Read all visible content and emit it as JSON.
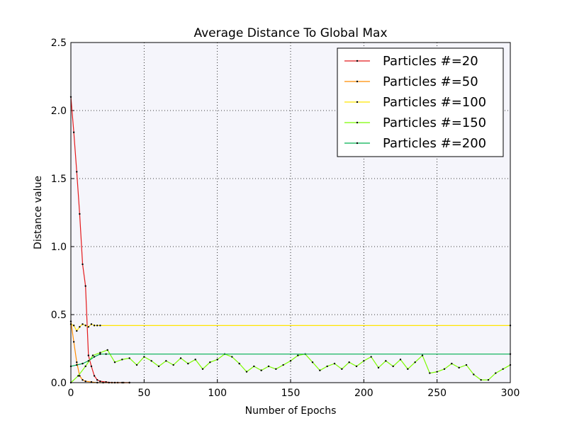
{
  "chart_data": {
    "type": "line",
    "title": "Average Distance To Global Max",
    "xlabel": "Number of Epochs",
    "ylabel": "Distance value",
    "xlim": [
      0,
      300
    ],
    "ylim": [
      0,
      2.5
    ],
    "xticks": [
      0,
      50,
      100,
      150,
      200,
      250,
      300
    ],
    "yticks": [
      {
        "value": 0,
        "label": "0.0"
      },
      0.5,
      {
        "value": 1,
        "label": "1.0"
      },
      1.5,
      {
        "value": 2,
        "label": "2.0"
      },
      2.5
    ],
    "grid": true,
    "legend": "upper right",
    "background": "#f5f5fb",
    "series": [
      {
        "name": "Particles #=20",
        "color": "#e41a1c",
        "x": [
          0,
          2,
          4,
          6,
          8,
          10,
          12,
          14,
          16,
          18,
          20,
          24,
          28,
          32,
          36,
          40
        ],
        "values": [
          2.1,
          1.84,
          1.55,
          1.24,
          0.87,
          0.71,
          0.2,
          0.12,
          0.05,
          0.02,
          0.01,
          0.005,
          0,
          0,
          0,
          0
        ]
      },
      {
        "name": "Particles #=50",
        "color": "#ff8c00",
        "x": [
          0,
          2,
          4,
          6,
          8,
          10,
          14,
          18,
          22,
          26,
          30,
          35,
          40
        ],
        "values": [
          0.45,
          0.3,
          0.15,
          0.05,
          0.02,
          0.01,
          0.005,
          0,
          0,
          0,
          0,
          0,
          0
        ]
      },
      {
        "name": "Particles #=100",
        "color": "#ffe600",
        "x": [
          0,
          2,
          4,
          6,
          8,
          10,
          12,
          14,
          16,
          18,
          20,
          300
        ],
        "values": [
          0.43,
          0.42,
          0.38,
          0.41,
          0.43,
          0.42,
          0.41,
          0.43,
          0.42,
          0.42,
          0.42,
          0.42
        ]
      },
      {
        "name": "Particles #=150",
        "color": "#7cfc00",
        "x": [
          0,
          5,
          10,
          15,
          20,
          25,
          30,
          35,
          40,
          45,
          50,
          55,
          60,
          65,
          70,
          75,
          80,
          85,
          90,
          95,
          100,
          105,
          110,
          115,
          120,
          125,
          130,
          135,
          140,
          145,
          150,
          155,
          160,
          165,
          170,
          175,
          180,
          185,
          190,
          195,
          200,
          205,
          210,
          215,
          220,
          225,
          230,
          235,
          240,
          245,
          250,
          255,
          260,
          265,
          270,
          275,
          280,
          285,
          290,
          295,
          300
        ],
        "values": [
          0.0,
          0.05,
          0.12,
          0.2,
          0.22,
          0.24,
          0.15,
          0.17,
          0.18,
          0.13,
          0.19,
          0.16,
          0.12,
          0.16,
          0.13,
          0.18,
          0.14,
          0.17,
          0.1,
          0.15,
          0.17,
          0.21,
          0.19,
          0.14,
          0.08,
          0.12,
          0.09,
          0.12,
          0.1,
          0.13,
          0.16,
          0.2,
          0.21,
          0.15,
          0.09,
          0.12,
          0.14,
          0.1,
          0.15,
          0.12,
          0.16,
          0.19,
          0.11,
          0.16,
          0.12,
          0.17,
          0.1,
          0.15,
          0.2,
          0.07,
          0.08,
          0.1,
          0.14,
          0.11,
          0.13,
          0.06,
          0.02,
          0.02,
          0.07,
          0.1,
          0.13
        ]
      },
      {
        "name": "Particles #=200",
        "color": "#00b050",
        "x": [
          0,
          4,
          8,
          12,
          16,
          20,
          24,
          300
        ],
        "values": [
          0.12,
          0.13,
          0.14,
          0.16,
          0.19,
          0.21,
          0.21,
          0.21
        ]
      }
    ]
  }
}
